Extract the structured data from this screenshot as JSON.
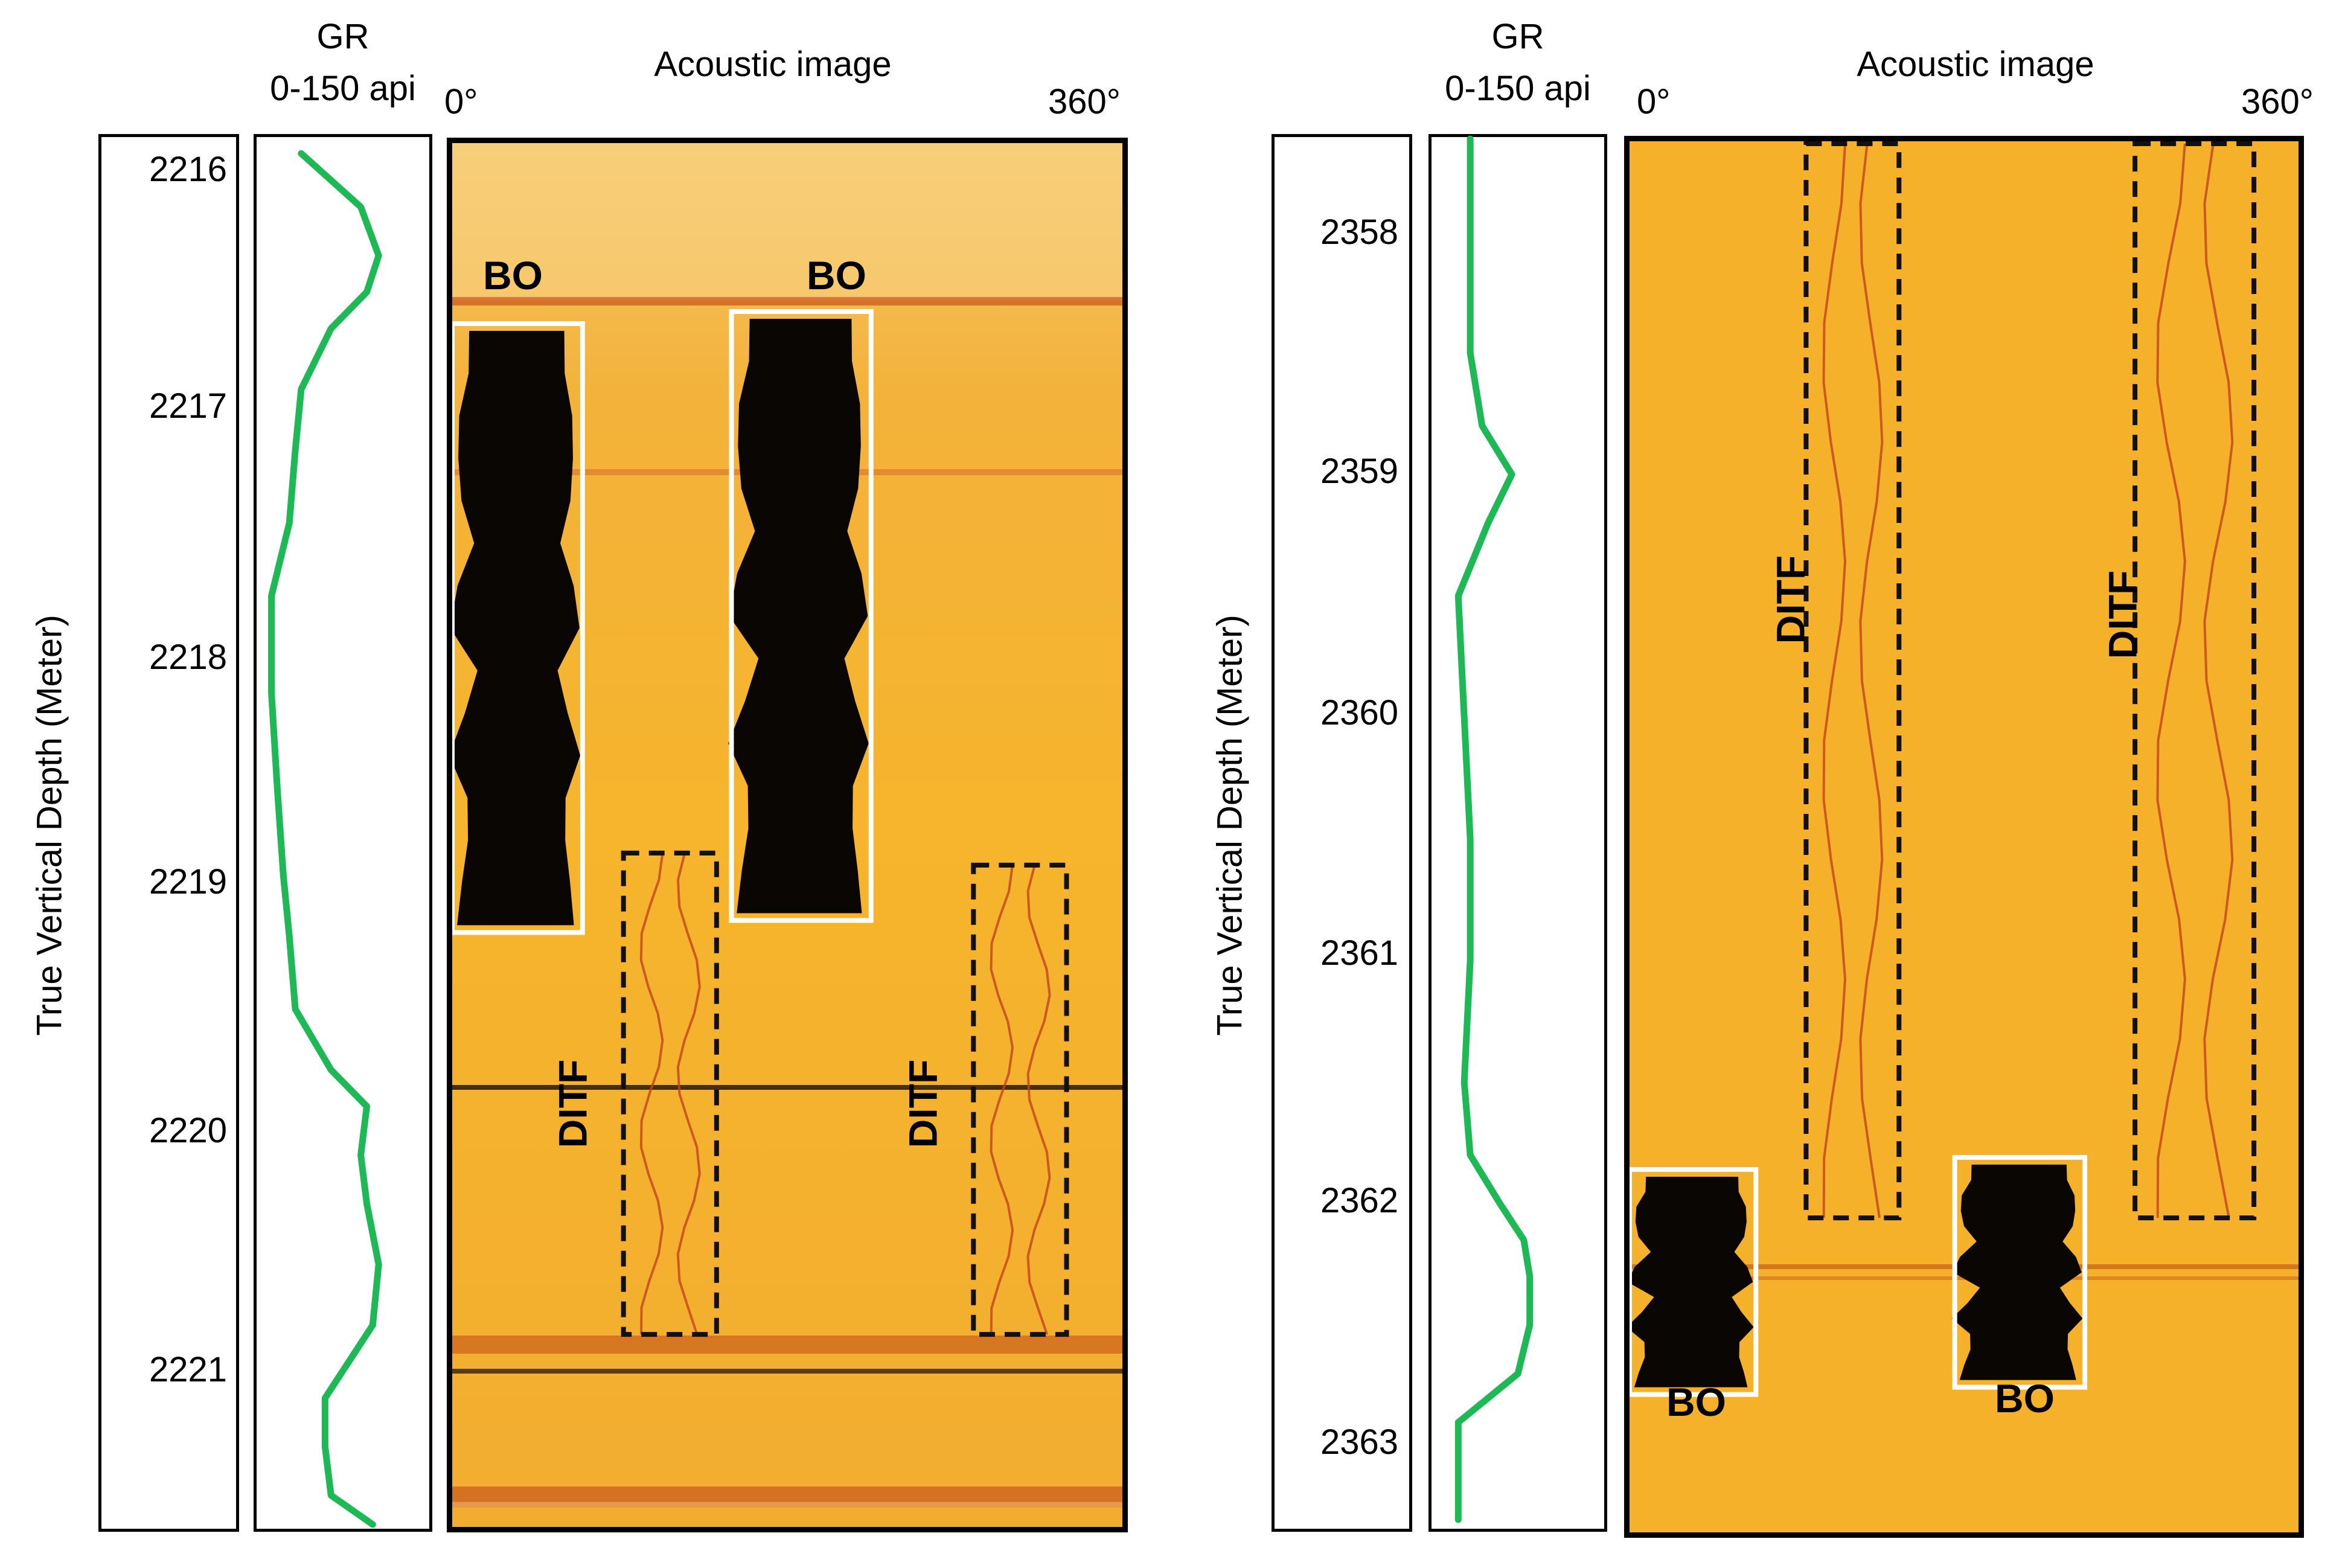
{
  "colors": {
    "gr_curve": "#1db954",
    "image_bg": "#f5b229",
    "breakout_fill": "#0a0604",
    "breakout_box": "#ffffff",
    "ditf_box": "#111111",
    "frame": "#000000"
  },
  "chart_data": [
    {
      "type": "line",
      "panel": "left",
      "title": "Acoustic image",
      "xlabel": "GR",
      "xunit_label": "0-150 api",
      "ylabel": "True Vertical Depth (Meter)",
      "image_start_label": "0°",
      "image_end_label": "360°",
      "depth_ticks": [
        "2216",
        "2217",
        "2218",
        "2219",
        "2220",
        "2221"
      ],
      "ylim": [
        2215.9,
        2221.65
      ],
      "xlim": [
        0,
        150
      ],
      "gr_series": {
        "name": "GR",
        "depth": [
          2215.98,
          2216.2,
          2216.4,
          2216.55,
          2216.7,
          2216.95,
          2217.2,
          2217.5,
          2217.8,
          2218.2,
          2218.6,
          2218.95,
          2219.2,
          2219.5,
          2219.75,
          2219.9,
          2220.1,
          2220.3,
          2220.55,
          2220.8,
          2221.1,
          2221.3,
          2221.5,
          2221.62
        ],
        "values": [
          40,
          90,
          105,
          95,
          65,
          40,
          35,
          30,
          15,
          15,
          20,
          25,
          30,
          35,
          65,
          95,
          90,
          95,
          105,
          100,
          60,
          60,
          65,
          100
        ]
      },
      "features": [
        {
          "label": "BO",
          "type": "breakout",
          "azimuth_deg": [
            0,
            70
          ],
          "depth": [
            2216.65,
            2219.18
          ],
          "label_position": "above"
        },
        {
          "label": "BO",
          "type": "breakout",
          "azimuth_deg": [
            150,
            225
          ],
          "depth": [
            2216.6,
            2219.13
          ],
          "label_position": "above"
        },
        {
          "label": "DITF",
          "type": "drilling-induced tensile fracture",
          "azimuth_deg": [
            92,
            142
          ],
          "depth": [
            2218.85,
            2220.85
          ],
          "label_position": "left"
        },
        {
          "label": "DITF",
          "type": "drilling-induced tensile fracture",
          "azimuth_deg": [
            280,
            330
          ],
          "depth": [
            2218.9,
            2220.85
          ],
          "label_position": "left"
        }
      ]
    },
    {
      "type": "line",
      "panel": "right",
      "title": "Acoustic image",
      "xlabel": "GR",
      "xunit_label": "0-150 api",
      "ylabel": "True Vertical Depth (Meter)",
      "image_start_label": "0°",
      "image_end_label": "360°",
      "depth_ticks": [
        "2358",
        "2359",
        "2360",
        "2361",
        "2362",
        "2363"
      ],
      "ylim": [
        2357.6,
        2363.35
      ],
      "xlim": [
        0,
        150
      ],
      "gr_series": {
        "name": "GR",
        "depth": [
          2357.62,
          2358.0,
          2358.5,
          2358.8,
          2359.0,
          2359.2,
          2359.5,
          2360.0,
          2360.5,
          2361.0,
          2361.5,
          2361.8,
          2362.0,
          2362.15,
          2362.3,
          2362.5,
          2362.7,
          2362.9,
          2363.3
        ],
        "values": [
          35,
          35,
          35,
          45,
          70,
          50,
          25,
          30,
          35,
          35,
          30,
          35,
          60,
          80,
          85,
          85,
          75,
          25,
          25
        ]
      },
      "features": [
        {
          "label": "DITF",
          "type": "drilling-induced tensile fracture",
          "azimuth_deg": [
            95,
            145
          ],
          "depth": [
            2357.6,
            2362.05
          ],
          "label_position": "left"
        },
        {
          "label": "DITF",
          "type": "drilling-induced tensile fracture",
          "azimuth_deg": [
            272,
            336
          ],
          "depth": [
            2357.6,
            2362.05
          ],
          "label_position": "left"
        },
        {
          "label": "BO",
          "type": "breakout",
          "azimuth_deg": [
            0,
            68
          ],
          "depth": [
            2361.85,
            2362.78
          ],
          "label_position": "below"
        },
        {
          "label": "BO",
          "type": "breakout",
          "azimuth_deg": [
            175,
            245
          ],
          "depth": [
            2361.8,
            2362.75
          ],
          "label_position": "below"
        }
      ]
    }
  ]
}
